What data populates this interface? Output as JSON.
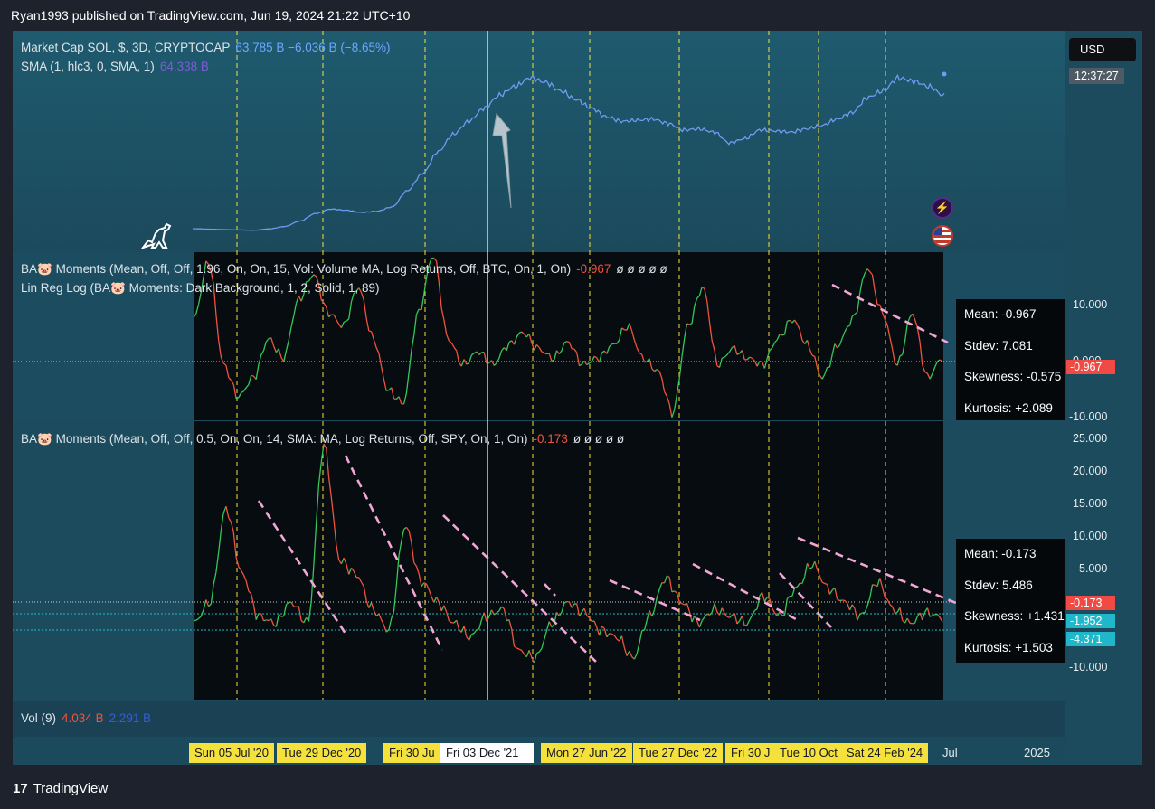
{
  "header": {
    "published": "Ryan1993 published on TradingView.com, Jun 19, 2024 21:22 UTC+10"
  },
  "footer": {
    "brand": "TradingView"
  },
  "price_scale": {
    "currency": "USD",
    "countdown": "12:37:27"
  },
  "colors": {
    "main_line": "#6f9bf0",
    "up": "#34c759",
    "down": "#f0533e",
    "dashed_vertical": "#f5e13c",
    "trendline": "#f2a6d6",
    "cursor": "#ffffff"
  },
  "pane1": {
    "legend_main_name": "Market Cap SOL, $, 3D, CRYPTOCAP",
    "legend_main_values": "63.785 B  −6.036 B (−8.65%)",
    "legend_sma_name": "SMA (1, hlc3, 0, SMA, 1)",
    "legend_sma_value": "64.338 B"
  },
  "pane2": {
    "legend1_name": "BA🐷 Moments (Mean, Off, Off, 1.96, On, On, 15, Vol: Volume MA, Log Returns, Off, BTC, On, 1, On)",
    "legend1_value": "-0.967",
    "legend1_extra": "ø ø ø ø ø",
    "legend2_name": "Lin Reg Log (BA🐷 Moments: Dark Background, 1, 2, Solid, 1, 89)",
    "stats": {
      "mean": "Mean: -0.967",
      "stdev": "Stdev: 7.081",
      "skewness": "Skewness: -0.575",
      "kurtosis": "Kurtosis: +2.089"
    },
    "ticks": [
      "10.000",
      "0.000",
      "-10.000"
    ],
    "last_tag": "-0.967"
  },
  "pane3": {
    "legend_name": "BA🐷 Moments (Mean, Off, Off, 0.5, On, On, 14, SMA: MA, Log Returns, Off, SPY, On, 1, On)",
    "legend_value": "-0.173",
    "legend_extra": "ø ø ø ø ø",
    "stats": {
      "mean": "Mean: -0.173",
      "stdev": "Stdev: 5.486",
      "skewness": "Skewness: +1.431",
      "kurtosis": "Kurtosis: +1.503"
    },
    "ticks": [
      "25.000",
      "20.000",
      "15.000",
      "10.000",
      "5.000",
      "-10.000"
    ],
    "tags": [
      "-0.173",
      "-1.952",
      "-4.371"
    ]
  },
  "pane4": {
    "legend_name": "Vol (9)",
    "value1": "4.034 B",
    "value2": "2.291 B"
  },
  "xaxis": {
    "labels": [
      "Sun 05 Jul '20",
      "Tue 29 Dec '20",
      "Fri 30 Ju",
      "Fri 03 Dec '21",
      "Mon 27 Jun '22",
      "Tue 27 Dec '22",
      "Fri 30 J",
      "Tue 10 Oct",
      "Sat 24 Feb '24"
    ],
    "extra_labels": [
      "Jul",
      "2025"
    ]
  },
  "chart_data": [
    {
      "type": "line",
      "title": "Market Cap SOL, $, 3D, CRYPTOCAP",
      "series": [
        {
          "name": "Market Cap SOL",
          "values": [
            2.5,
            2.3,
            2.1,
            1.9,
            1.8,
            2.4,
            3.5,
            6.0,
            9.5,
            11.5,
            11.0,
            10.0,
            10.5,
            12.5,
            20.0,
            28.0,
            38.0,
            46.0,
            52.0,
            58.0,
            64.0,
            68.0,
            72.0,
            70.0,
            66.0,
            62.0,
            58.0,
            54.0,
            52.0,
            52.5,
            53.0,
            51.0,
            48.0,
            48.5,
            47.0,
            42.0,
            44.0,
            48.0,
            47.5,
            47.0,
            48.5,
            50.0,
            53.0,
            56.0,
            63.0,
            66.0,
            72.0,
            70.5,
            68.0,
            63.8
          ]
        }
      ],
      "note_units": "B USD"
    },
    {
      "type": "line",
      "title": "BA🐷 Moments (BTC)",
      "series": [
        {
          "name": "BA🐷 Moments",
          "values": [
            5.0,
            14.0,
            -2.0,
            -7.0,
            -4.0,
            2.0,
            -1.0,
            8.0,
            12.0,
            6.0,
            4.0,
            10.0,
            2.0,
            -6.0,
            -8.0,
            6.0,
            15.0,
            2.0,
            -2.0,
            0.0,
            -2.0,
            1.0,
            3.0,
            0.5,
            -1.0,
            1.5,
            -2.0,
            -1.0,
            1.0,
            4.0,
            -1.0,
            -3.0,
            -9.5,
            4.0,
            10.0,
            -2.0,
            0.5,
            -1.0,
            -2.0,
            2.0,
            5.0,
            1.0,
            -4.0,
            1.0,
            5.0,
            13.0,
            6.0,
            -2.0,
            6.0,
            -4.0,
            -0.967
          ]
        }
      ],
      "ylim": [
        -10,
        15
      ]
    },
    {
      "type": "line",
      "title": "BA🐷 Moments (SPY)",
      "series": [
        {
          "name": "BA🐷 Moments",
          "values": [
            -1.0,
            2.0,
            15.5,
            6.0,
            0.0,
            -1.0,
            2.0,
            -1.0,
            24.5,
            8.0,
            6.0,
            1.0,
            -2.0,
            13.0,
            5.0,
            2.0,
            -1.0,
            -3.0,
            0.0,
            1.0,
            -5.0,
            -6.0,
            -1.0,
            2.0,
            0.5,
            -2.0,
            -3.0,
            -6.0,
            0.0,
            5.5,
            2.0,
            -1.0,
            1.0,
            0.0,
            -1.0,
            3.0,
            0.0,
            4.0,
            7.5,
            4.0,
            2.0,
            0.0,
            5.0,
            1.0,
            -1.0,
            0.5,
            -0.173
          ]
        }
      ],
      "ylim": [
        -12,
        27
      ]
    }
  ]
}
